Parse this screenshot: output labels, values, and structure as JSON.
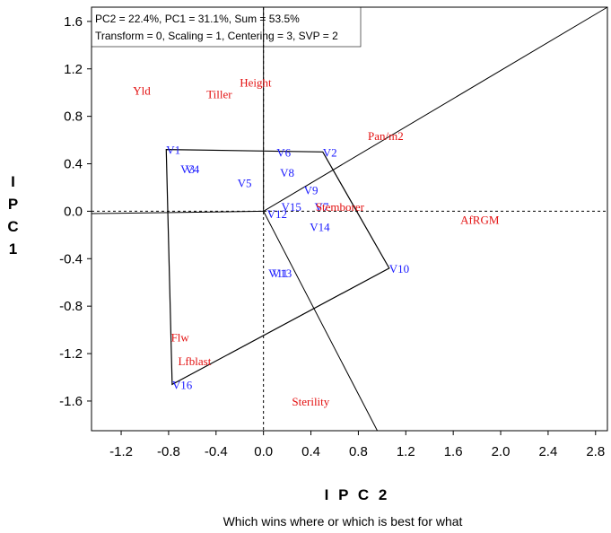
{
  "chart_data": {
    "type": "scatter",
    "info_lines": [
      "PC2 = 22.4%, PC1 = 31.1%, Sum = 53.5%",
      "Transform = 0, Scaling = 1, Centering = 3, SVP = 2"
    ],
    "xlabel": "I P C 2",
    "ylabel": [
      "I",
      "P",
      "C",
      "1"
    ],
    "caption": "Which wins where or which is best for what",
    "xlim": [
      -1.45,
      2.9
    ],
    "ylim": [
      -1.85,
      1.72
    ],
    "xticks": [
      -1.2,
      -0.8,
      -0.4,
      0.0,
      0.4,
      0.8,
      1.2,
      1.6,
      2.0,
      2.4,
      2.8
    ],
    "xtick_labels": [
      "-1.2",
      "-0.8",
      "-0.4",
      "0.0",
      "0.4",
      "0.8",
      "1.2",
      "1.6",
      "2.0",
      "2.4",
      "2.8"
    ],
    "yticks": [
      1.6,
      1.2,
      0.8,
      0.4,
      0.0,
      -0.4,
      -0.8,
      -1.2,
      -1.6
    ],
    "ytick_labels": [
      "1.6",
      "1.2",
      "0.8",
      "0.4",
      "0.0",
      "-0.4",
      "-0.8",
      "-1.2",
      "-1.6"
    ],
    "genotypes": [
      {
        "label": "V1",
        "x": -0.82,
        "y": 0.52
      },
      {
        "label": "V3",
        "x": -0.7,
        "y": 0.36
      },
      {
        "label": "V4",
        "x": -0.66,
        "y": 0.36
      },
      {
        "label": "V5",
        "x": -0.22,
        "y": 0.24
      },
      {
        "label": "V6",
        "x": 0.11,
        "y": 0.5
      },
      {
        "label": "V8",
        "x": 0.14,
        "y": 0.33
      },
      {
        "label": "V2",
        "x": 0.5,
        "y": 0.5
      },
      {
        "label": "V9",
        "x": 0.34,
        "y": 0.18
      },
      {
        "label": "V15",
        "x": 0.15,
        "y": 0.04
      },
      {
        "label": "V7",
        "x": 0.43,
        "y": 0.04
      },
      {
        "label": "V12",
        "x": 0.03,
        "y": -0.02
      },
      {
        "label": "V14",
        "x": 0.39,
        "y": -0.13
      },
      {
        "label": "V11",
        "x": 0.04,
        "y": -0.52
      },
      {
        "label": "V13",
        "x": 0.07,
        "y": -0.52
      },
      {
        "label": "V10",
        "x": 1.06,
        "y": -0.48
      },
      {
        "label": "V16",
        "x": -0.77,
        "y": -1.46
      }
    ],
    "environments": [
      {
        "label": "Yld",
        "x": -1.1,
        "y": 1.02
      },
      {
        "label": "Tiller",
        "x": -0.48,
        "y": 0.99
      },
      {
        "label": "Height",
        "x": -0.2,
        "y": 1.09
      },
      {
        "label": "Pan/m2",
        "x": 0.88,
        "y": 0.64
      },
      {
        "label": "Stemborer",
        "x": 0.44,
        "y": 0.04
      },
      {
        "label": "AfRGM",
        "x": 1.66,
        "y": -0.07
      },
      {
        "label": "Flw",
        "x": -0.78,
        "y": -1.06
      },
      {
        "label": "Lfblast",
        "x": -0.72,
        "y": -1.26
      },
      {
        "label": "Sterility",
        "x": 0.24,
        "y": -1.6
      }
    ],
    "polygon_vertices": [
      "V1",
      "V2",
      "V10",
      "V16"
    ],
    "polygon": [
      {
        "x": -0.82,
        "y": 0.52
      },
      {
        "x": 0.5,
        "y": 0.5
      },
      {
        "x": 1.06,
        "y": -0.48
      },
      {
        "x": -0.77,
        "y": -1.46
      }
    ],
    "rays": [
      {
        "from": {
          "x": 0.0,
          "y": 0.0
        },
        "to": {
          "x": -1.45,
          "y": -0.02
        }
      },
      {
        "from": {
          "x": 0.0,
          "y": 0.0
        },
        "to": {
          "x": 0.0,
          "y": 1.72
        }
      },
      {
        "from": {
          "x": 0.0,
          "y": 0.0
        },
        "to": {
          "x": 2.9,
          "y": 1.72
        }
      },
      {
        "from": {
          "x": 0.0,
          "y": 0.0
        },
        "to": {
          "x": 0.96,
          "y": -1.85
        }
      }
    ],
    "colors": {
      "genotype": "#1a1aff",
      "environment": "#e31010",
      "lines": "#000000"
    }
  }
}
